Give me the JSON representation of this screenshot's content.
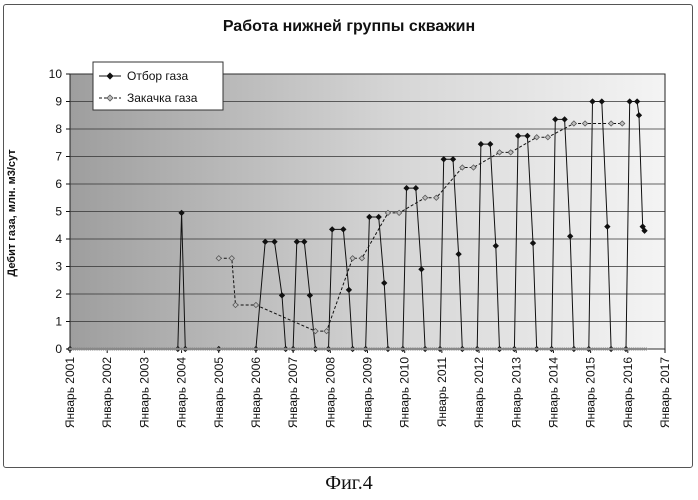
{
  "caption": "Фиг.4",
  "colors": {
    "plot_bg_dark": "#9e9e9e",
    "plot_bg_light": "#f4f4f4",
    "grid": "#333333",
    "series_line": "#111111",
    "inject_marker": "#bdbdbd"
  },
  "chart_data": {
    "type": "line",
    "title": "Работа нижней группы скважин",
    "ylabel": "Дебит газа, млн. м3/сут",
    "xlabel": "",
    "ylim": [
      0,
      10
    ],
    "yticks": [
      "0",
      "1",
      "2",
      "3",
      "4",
      "5",
      "6",
      "7",
      "8",
      "9",
      "10"
    ],
    "xlim": [
      2001,
      2017
    ],
    "xticks": [
      "Январь 2001",
      "Январь 2002",
      "Январь 2003",
      "Январь 2004",
      "Январь 2005",
      "Январь 2006",
      "Январь 2007",
      "Январь 2008",
      "Январь 2009",
      "Январь 2010",
      "Январь 2011",
      "Январь 2012",
      "Январь 2013",
      "Январь 2014",
      "Январь 2015",
      "Январь 2016",
      "Январь 2017"
    ],
    "grid": true,
    "legend_position": "top-left",
    "series": [
      {
        "name": "Отбор газа",
        "marker": "diamond-filled",
        "points": [
          [
            2001.0,
            0
          ],
          [
            2003.9,
            0
          ],
          [
            2004.0,
            4.95
          ],
          [
            2004.1,
            0
          ],
          [
            2005.0,
            0
          ],
          [
            2006.0,
            0
          ],
          [
            2006.25,
            3.9
          ],
          [
            2006.5,
            3.9
          ],
          [
            2006.7,
            1.95
          ],
          [
            2006.8,
            0
          ],
          [
            2007.0,
            0
          ],
          [
            2007.1,
            3.9
          ],
          [
            2007.3,
            3.9
          ],
          [
            2007.45,
            1.95
          ],
          [
            2007.6,
            0
          ],
          [
            2007.95,
            0
          ],
          [
            2008.05,
            4.35
          ],
          [
            2008.35,
            4.35
          ],
          [
            2008.5,
            2.15
          ],
          [
            2008.6,
            0
          ],
          [
            2008.95,
            0
          ],
          [
            2009.05,
            4.8
          ],
          [
            2009.3,
            4.8
          ],
          [
            2009.45,
            2.4
          ],
          [
            2009.55,
            0
          ],
          [
            2009.95,
            0
          ],
          [
            2010.05,
            5.85
          ],
          [
            2010.3,
            5.85
          ],
          [
            2010.45,
            2.9
          ],
          [
            2010.55,
            0
          ],
          [
            2010.95,
            0
          ],
          [
            2011.05,
            6.9
          ],
          [
            2011.3,
            6.9
          ],
          [
            2011.45,
            3.45
          ],
          [
            2011.55,
            0
          ],
          [
            2011.95,
            0
          ],
          [
            2012.05,
            7.45
          ],
          [
            2012.3,
            7.45
          ],
          [
            2012.45,
            3.75
          ],
          [
            2012.55,
            0
          ],
          [
            2012.95,
            0
          ],
          [
            2013.05,
            7.75
          ],
          [
            2013.3,
            7.75
          ],
          [
            2013.45,
            3.85
          ],
          [
            2013.55,
            0
          ],
          [
            2013.95,
            0
          ],
          [
            2014.05,
            8.35
          ],
          [
            2014.3,
            8.35
          ],
          [
            2014.45,
            4.1
          ],
          [
            2014.55,
            0
          ],
          [
            2014.95,
            0
          ],
          [
            2015.05,
            9.0
          ],
          [
            2015.3,
            9.0
          ],
          [
            2015.45,
            4.45
          ],
          [
            2015.55,
            0
          ],
          [
            2015.95,
            0
          ],
          [
            2016.05,
            9.0
          ],
          [
            2016.25,
            9.0
          ],
          [
            2016.3,
            8.5
          ],
          [
            2016.4,
            4.45
          ],
          [
            2016.45,
            4.3
          ]
        ]
      },
      {
        "name": "Закачка газа",
        "marker": "diamond-open",
        "points": [
          [
            2005.0,
            3.3
          ],
          [
            2005.35,
            3.3
          ],
          [
            2005.45,
            1.6
          ],
          [
            2006.0,
            1.6
          ],
          [
            2007.6,
            0.65
          ],
          [
            2007.9,
            0.65
          ],
          [
            2008.6,
            3.3
          ],
          [
            2008.85,
            3.3
          ],
          [
            2009.55,
            4.95
          ],
          [
            2009.85,
            4.95
          ],
          [
            2010.55,
            5.5
          ],
          [
            2010.85,
            5.5
          ],
          [
            2011.55,
            6.6
          ],
          [
            2011.85,
            6.6
          ],
          [
            2012.55,
            7.15
          ],
          [
            2012.85,
            7.15
          ],
          [
            2013.55,
            7.7
          ],
          [
            2013.85,
            7.7
          ],
          [
            2014.55,
            8.2
          ],
          [
            2014.85,
            8.2
          ],
          [
            2015.55,
            8.2
          ],
          [
            2015.85,
            8.2
          ]
        ]
      }
    ]
  }
}
